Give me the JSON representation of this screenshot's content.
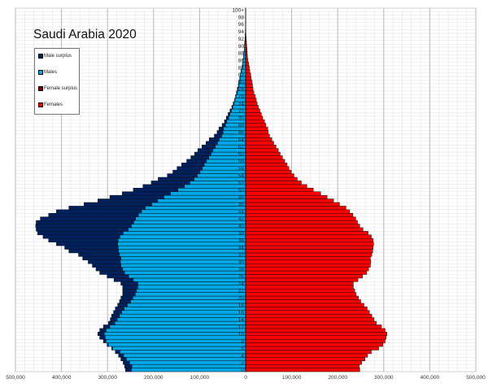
{
  "chart_data": {
    "type": "bar",
    "orientation": "horizontal-pyramid",
    "title": "Saudi Arabia 2020",
    "xlim": [
      -500000,
      500000
    ],
    "x_ticks": [
      "500,000",
      "400,000",
      "300,000",
      "200,000",
      "100,000",
      "0",
      "100,000",
      "200,000",
      "300,000",
      "400,000",
      "500,000"
    ],
    "age_tick_labels": [
      "0",
      "2",
      "4",
      "6",
      "8",
      "10",
      "12",
      "14",
      "16",
      "18",
      "20",
      "22",
      "24",
      "26",
      "28",
      "30",
      "32",
      "34",
      "36",
      "38",
      "40",
      "42",
      "44",
      "46",
      "48",
      "50",
      "52",
      "54",
      "56",
      "58",
      "60",
      "62",
      "64",
      "66",
      "68",
      "70",
      "72",
      "74",
      "76",
      "78",
      "80",
      "82",
      "84",
      "86",
      "88",
      "90",
      "92",
      "94",
      "96",
      "98",
      "100+"
    ],
    "ages": "0-100+ (single years)",
    "units": "persons (thousands in arrays)",
    "grid": true,
    "legend": {
      "placement": "top-left",
      "entries": [
        {
          "name": "Male surplus",
          "color": "#00215e"
        },
        {
          "name": "Males",
          "color": "#00a8e8"
        },
        {
          "name": "Female surplus",
          "color": "#7a0000"
        },
        {
          "name": "Females",
          "color": "#ff0000"
        }
      ]
    },
    "males_thousands": [
      261,
      263,
      266,
      271,
      276,
      283,
      291,
      301,
      309,
      317,
      321,
      317,
      309,
      298,
      294,
      291,
      287,
      283,
      278,
      274,
      271,
      267,
      267,
      267,
      271,
      286,
      301,
      317,
      325,
      333,
      342,
      354,
      363,
      384,
      393,
      411,
      428,
      440,
      452,
      455,
      456,
      455,
      446,
      428,
      411,
      384,
      351,
      321,
      295,
      268,
      244,
      223,
      205,
      190,
      170,
      158,
      149,
      139,
      128,
      119,
      111,
      104,
      95,
      86,
      79,
      68,
      62,
      58,
      51,
      46,
      42,
      38,
      34,
      30,
      27,
      24,
      22,
      20,
      18,
      16,
      15,
      13,
      11.5,
      10,
      8.5,
      7,
      5.5,
      4.5,
      3.8,
      3.2,
      2.5,
      1.9,
      1.3,
      0.9,
      0.6,
      0.4,
      0.3,
      0.2,
      0.1,
      0.1,
      0.1
    ],
    "females_thousands": [
      248,
      247,
      252,
      259,
      265,
      273,
      289,
      298,
      303,
      305,
      307,
      303,
      295,
      284,
      279,
      274,
      269,
      264,
      257,
      250,
      245,
      240,
      237,
      234,
      234,
      244,
      254,
      263,
      267,
      271,
      272,
      271,
      274,
      276,
      277,
      278,
      277,
      273,
      266,
      255,
      248,
      243,
      239,
      233,
      226,
      218,
      204,
      191,
      177,
      163,
      147,
      133,
      121,
      112,
      105,
      99,
      94,
      90,
      85,
      80,
      75,
      71,
      66,
      61,
      57,
      52,
      49,
      48,
      44,
      41,
      37,
      34,
      31,
      28,
      25,
      23,
      21,
      18,
      16,
      15,
      14,
      12,
      11,
      9,
      8,
      6.5,
      5,
      4,
      3.5,
      3,
      2.4,
      1.8,
      1.2,
      0.8,
      0.5,
      0.3,
      0.2,
      0.1,
      0.1,
      0.05,
      0.05
    ]
  }
}
